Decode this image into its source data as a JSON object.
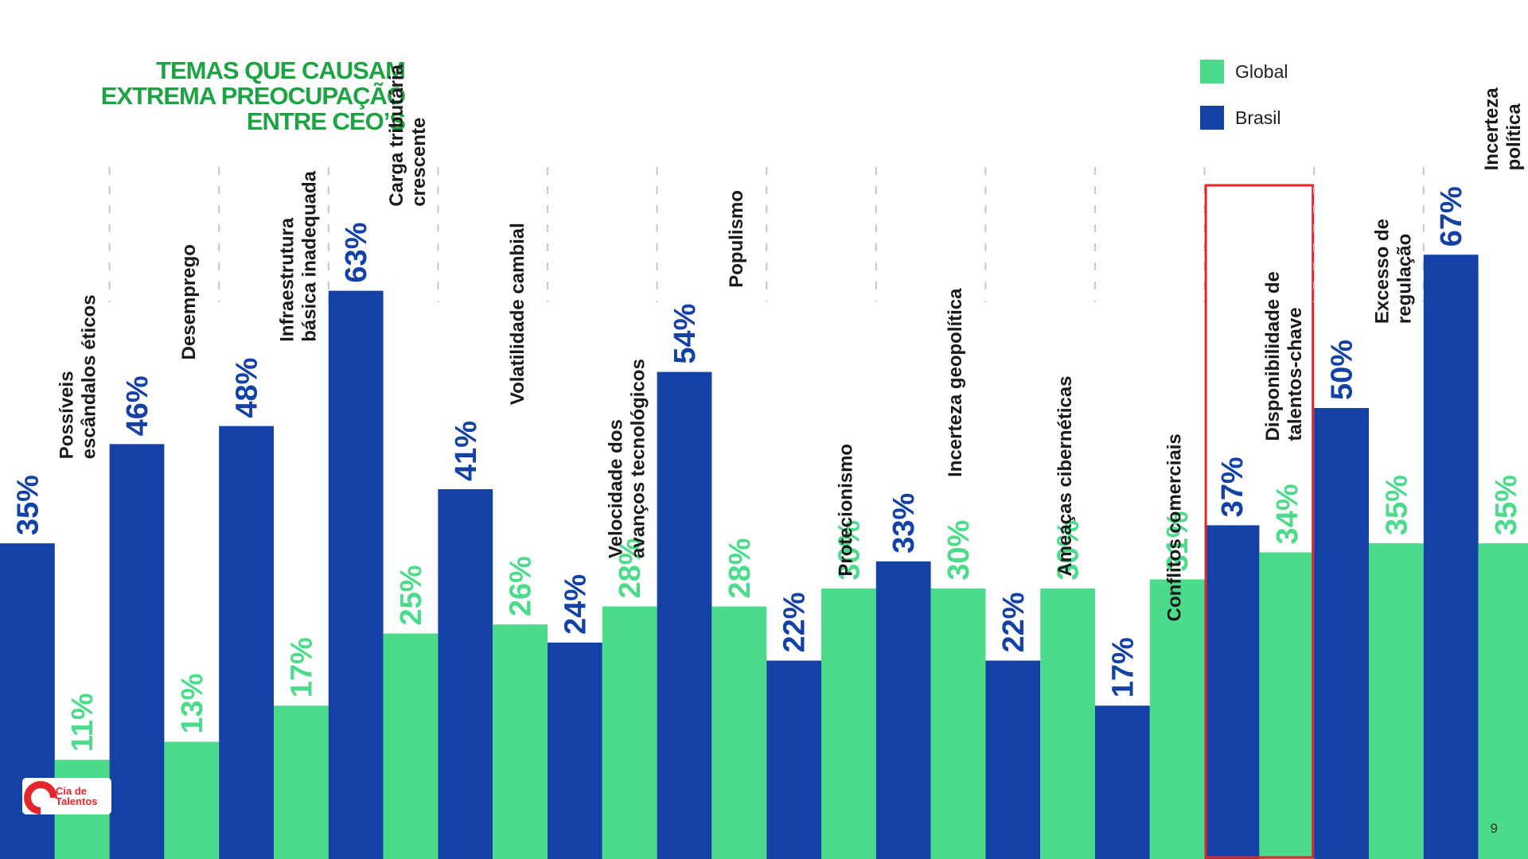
{
  "title_lines": [
    "TEMAS QUE CAUSAM",
    "EXTREMA PREOCUPAÇÃO",
    "ENTRE CEO’S"
  ],
  "legend": [
    {
      "label": "Global",
      "color": "#4cdb8a"
    },
    {
      "label": "Brasil",
      "color": "#1441a6"
    }
  ],
  "logo": {
    "line1": "Cia de",
    "line2": "Talentos"
  },
  "page_number": "9",
  "colors": {
    "brasil": "#1441a6",
    "global": "#4cdb8a",
    "title": "#1ea344",
    "highlight": "#e0262a",
    "separator": "#c8c8c8"
  },
  "chart_data": {
    "type": "bar",
    "title": "TEMAS QUE CAUSAM EXTREMA PREOCUPAÇÃO ENTRE CEO’S",
    "categories": [
      [
        "Possíveis",
        "escândalos éticos"
      ],
      [
        "Desemprego"
      ],
      [
        "Infraestrutura",
        "básica inadequada"
      ],
      [
        "Carga tributária",
        "crescente"
      ],
      [
        "Volatilidade cambial"
      ],
      [
        "Velocidade dos",
        "avanços tecnológicos"
      ],
      [
        "Populismo"
      ],
      [
        "Protecionismo"
      ],
      [
        "Incerteza geopolítica"
      ],
      [
        "Ameaças cibernéticas"
      ],
      [
        "Conflitos comerciais"
      ],
      [
        "Disponibilidade de",
        "talentos-chave"
      ],
      [
        "Excesso de",
        "regulação"
      ],
      [
        "Incerteza",
        "política"
      ]
    ],
    "series": [
      {
        "name": "Brasil",
        "values": [
          35,
          46,
          48,
          63,
          41,
          24,
          54,
          22,
          33,
          22,
          17,
          37,
          50,
          67
        ]
      },
      {
        "name": "Global",
        "values": [
          11,
          13,
          17,
          25,
          26,
          28,
          28,
          30,
          30,
          30,
          31,
          34,
          35,
          35
        ]
      }
    ],
    "value_suffix": "%",
    "highlighted_category": [
      "Disponibilidade de",
      "talentos-chave"
    ],
    "xlabel": "",
    "ylabel": "",
    "ylim": [
      0,
      100
    ]
  }
}
